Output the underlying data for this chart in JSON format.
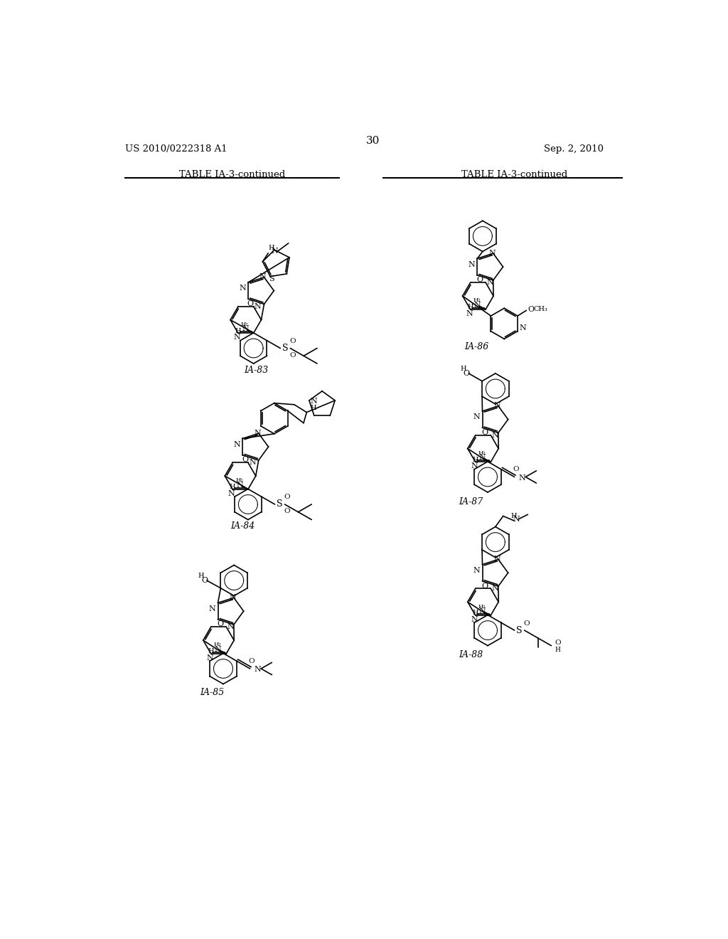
{
  "page_number": "30",
  "patent_number": "US 2010/0222318 A1",
  "patent_date": "Sep. 2, 2010",
  "table_title": "TABLE IA-3-continued",
  "bg": "#ffffff",
  "fg": "#000000"
}
